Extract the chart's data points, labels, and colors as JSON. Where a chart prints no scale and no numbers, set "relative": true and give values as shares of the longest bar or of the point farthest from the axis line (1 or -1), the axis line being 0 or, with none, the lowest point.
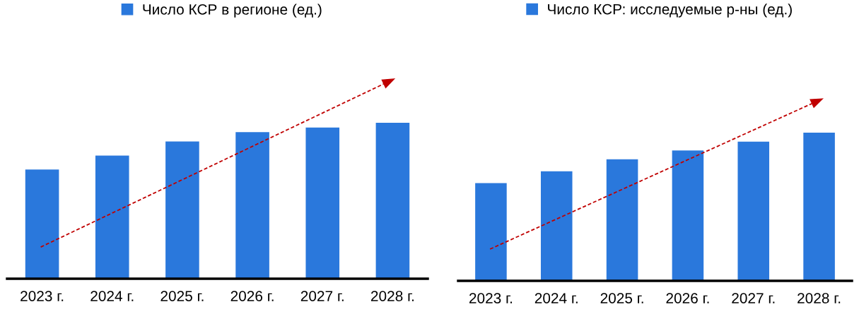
{
  "chart_data": [
    {
      "type": "bar",
      "relative": true,
      "legend": "top",
      "categories": [
        "2023 г.",
        "2024 г.",
        "2025 г.",
        "2026 г.",
        "2027 г.",
        "2028 г."
      ],
      "series": [
        {
          "name": "Число КСР в регионе (ед.)",
          "color": "#2a78dc",
          "values": [
            0.7,
            0.79,
            0.88,
            0.94,
            0.97,
            1
          ]
        }
      ]
    },
    {
      "type": "bar",
      "relative": true,
      "legend": "top",
      "categories": [
        "2023 г.",
        "2024 г.",
        "2025 г.",
        "2026 г.",
        "2027 г.",
        "2028 г."
      ],
      "series": [
        {
          "name": "Число КСР: исследуемые р-ны (ед.)",
          "color": "#2a78dc",
          "values": [
            0.66,
            0.74,
            0.82,
            0.88,
            0.94,
            1
          ]
        }
      ]
    }
  ]
}
